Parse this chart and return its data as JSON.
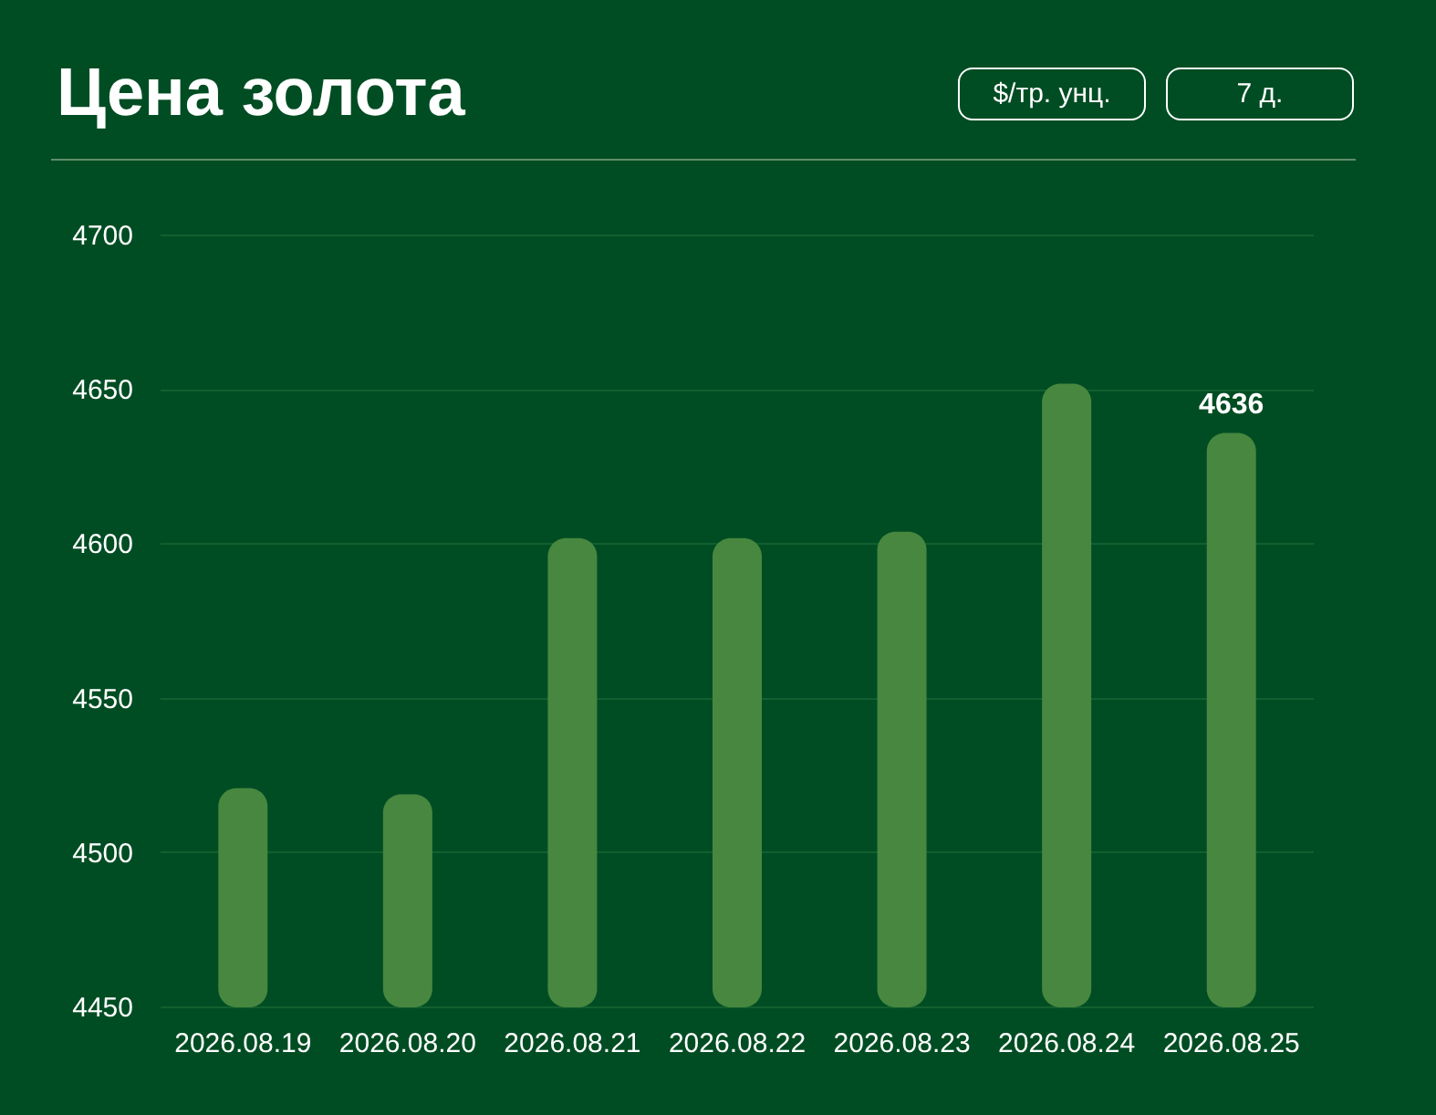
{
  "chart_data": {
    "type": "bar",
    "title": "Цена золота",
    "annotations": [
      "$/тр. унц.",
      "7 д."
    ],
    "categories": [
      "2026.08.19",
      "2026.08.20",
      "2026.08.21",
      "2026.08.22",
      "2026.08.23",
      "2026.08.24",
      "2026.08.25"
    ],
    "values": [
      4521,
      4519,
      4602,
      4602,
      4604,
      4652,
      4636
    ],
    "value_labels": [
      null,
      null,
      null,
      null,
      null,
      null,
      "4636"
    ],
    "color": "#47873f",
    "ylim": [
      4450,
      4700
    ],
    "yticks": [
      4450,
      4500,
      4550,
      4600,
      4650,
      4700
    ],
    "grid": "y"
  }
}
